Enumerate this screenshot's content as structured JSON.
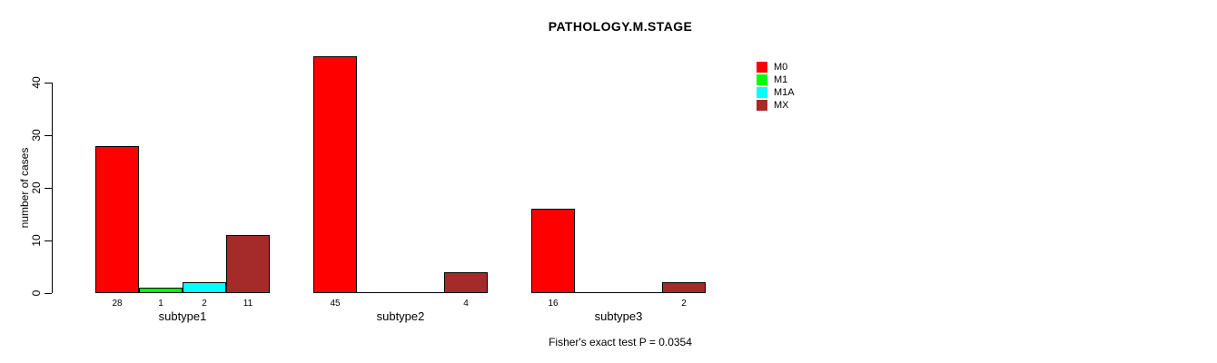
{
  "title": "PATHOLOGY.M.STAGE",
  "footer": "Fisher's exact test P = 0.0354",
  "chart_data": {
    "type": "bar",
    "grouped": true,
    "title": "PATHOLOGY.M.STAGE",
    "xlabel": "",
    "ylabel": "number of cases",
    "categories": [
      "subtype1",
      "subtype2",
      "subtype3"
    ],
    "series": [
      {
        "name": "M0",
        "color": "#FF0000",
        "values": [
          28,
          45,
          16
        ]
      },
      {
        "name": "M1",
        "color": "#00FF00",
        "values": [
          1,
          0,
          0
        ]
      },
      {
        "name": "M1A",
        "color": "#00FFFF",
        "values": [
          2,
          0,
          0
        ]
      },
      {
        "name": "MX",
        "color": "#A52A2A",
        "values": [
          11,
          4,
          2
        ]
      }
    ],
    "yticks": [
      0,
      10,
      20,
      30,
      40
    ],
    "ylim": [
      0,
      46
    ],
    "grid": false,
    "value_labels_shown": true,
    "zero_bars_drawn_as_baseline_segments": true,
    "legend_position": "right",
    "annotation": "Fisher's exact test P = 0.0354",
    "colors": {
      "background": "#FFFFFF",
      "axis": "#000000",
      "bar_border": "#000000",
      "text": "#000000"
    }
  }
}
